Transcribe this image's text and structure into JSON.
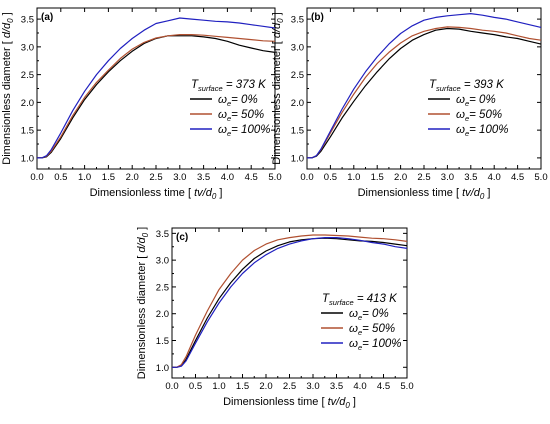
{
  "chart_data": [
    {
      "type": "line",
      "panel_label": "(a)",
      "temperature": {
        "sym": "T",
        "sub": "surface",
        "value": "= 373 K"
      },
      "xlabel": {
        "text": "Dimensionless time [",
        "var": "tv/d",
        "sub": "0",
        "close": "]"
      },
      "ylabel": {
        "text": "Dimensionless  diameter  [",
        "var": "d/d",
        "sub": "0",
        "close": "]"
      },
      "xlim": [
        0,
        5
      ],
      "ylim": [
        0.8,
        3.7
      ],
      "xticks": [
        "0.0",
        "0.5",
        "1.0",
        "1.5",
        "2.0",
        "2.5",
        "3.0",
        "3.5",
        "4.0",
        "4.5",
        "5.0"
      ],
      "yticks": [
        "1.0",
        "1.5",
        "2.0",
        "2.5",
        "3.0",
        "3.5"
      ],
      "series": [
        {
          "name": "= 0%",
          "color": "#000000",
          "x": [
            0,
            0.1,
            0.2,
            0.3,
            0.5,
            0.75,
            1,
            1.25,
            1.5,
            1.75,
            2,
            2.25,
            2.5,
            2.75,
            3,
            3.25,
            3.5,
            3.75,
            4,
            4.25,
            4.5,
            4.75,
            5
          ],
          "y": [
            1.0,
            1.0,
            1.02,
            1.1,
            1.35,
            1.72,
            2.05,
            2.32,
            2.55,
            2.75,
            2.92,
            3.06,
            3.15,
            3.2,
            3.2,
            3.2,
            3.18,
            3.15,
            3.1,
            3.03,
            2.98,
            2.93,
            2.9
          ]
        },
        {
          "name": "= 50%",
          "color": "#b05030",
          "x": [
            0,
            0.1,
            0.2,
            0.3,
            0.5,
            0.75,
            1,
            1.25,
            1.5,
            1.75,
            2,
            2.25,
            2.5,
            2.75,
            3,
            3.25,
            3.5,
            3.75,
            4,
            4.25,
            4.5,
            4.75,
            5
          ],
          "y": [
            1.0,
            1.0,
            1.03,
            1.12,
            1.38,
            1.76,
            2.09,
            2.36,
            2.58,
            2.79,
            2.96,
            3.08,
            3.16,
            3.2,
            3.22,
            3.22,
            3.21,
            3.19,
            3.17,
            3.15,
            3.13,
            3.11,
            3.1
          ]
        },
        {
          "name": "= 100%",
          "color": "#2020c0",
          "x": [
            0,
            0.1,
            0.2,
            0.3,
            0.5,
            0.75,
            1,
            1.25,
            1.5,
            1.75,
            2,
            2.25,
            2.5,
            2.75,
            3,
            3.25,
            3.5,
            3.75,
            4,
            4.25,
            4.5,
            4.75,
            5
          ],
          "y": [
            1.0,
            1.0,
            1.04,
            1.15,
            1.45,
            1.85,
            2.2,
            2.5,
            2.75,
            2.97,
            3.15,
            3.3,
            3.42,
            3.47,
            3.52,
            3.5,
            3.48,
            3.46,
            3.45,
            3.43,
            3.4,
            3.37,
            3.34
          ]
        }
      ]
    },
    {
      "type": "line",
      "panel_label": "(b)",
      "temperature": {
        "sym": "T",
        "sub": "surface",
        "value": "= 393 K"
      },
      "xlabel": {
        "text": "Dimensionless time [",
        "var": "tv/d",
        "sub": "0",
        "close": "]"
      },
      "ylabel": {
        "text": "Dimensionless  diameter  [",
        "var": "d/d",
        "sub": "0",
        "close": "]"
      },
      "xlim": [
        0,
        5
      ],
      "ylim": [
        0.8,
        3.7
      ],
      "xticks": [
        "0.0",
        "0.5",
        "1.0",
        "1.5",
        "2.0",
        "2.5",
        "3.0",
        "3.5",
        "4.0",
        "4.5",
        "5.0"
      ],
      "yticks": [
        "1.0",
        "1.5",
        "2.0",
        "2.5",
        "3.0",
        "3.5"
      ],
      "series": [
        {
          "name": "= 0%",
          "color": "#000000",
          "x": [
            0,
            0.1,
            0.2,
            0.3,
            0.5,
            0.75,
            1,
            1.25,
            1.5,
            1.75,
            2,
            2.25,
            2.5,
            2.75,
            3,
            3.25,
            3.5,
            3.75,
            4,
            4.25,
            4.5,
            4.75,
            5
          ],
          "y": [
            1.0,
            1.0,
            1.03,
            1.12,
            1.38,
            1.72,
            2.02,
            2.3,
            2.55,
            2.78,
            2.97,
            3.12,
            3.22,
            3.3,
            3.33,
            3.32,
            3.28,
            3.25,
            3.22,
            3.18,
            3.15,
            3.1,
            3.05
          ]
        },
        {
          "name": "= 50%",
          "color": "#b05030",
          "x": [
            0,
            0.1,
            0.2,
            0.3,
            0.5,
            0.75,
            1,
            1.25,
            1.5,
            1.75,
            2,
            2.25,
            2.5,
            2.75,
            3,
            3.25,
            3.5,
            3.75,
            4,
            4.25,
            4.5,
            4.75,
            5
          ],
          "y": [
            1.0,
            1.0,
            1.04,
            1.15,
            1.45,
            1.82,
            2.15,
            2.45,
            2.7,
            2.9,
            3.07,
            3.2,
            3.28,
            3.33,
            3.36,
            3.35,
            3.33,
            3.3,
            3.28,
            3.25,
            3.2,
            3.15,
            3.12
          ]
        },
        {
          "name": "= 100%",
          "color": "#2020c0",
          "x": [
            0,
            0.1,
            0.2,
            0.3,
            0.5,
            0.75,
            1,
            1.25,
            1.5,
            1.75,
            2,
            2.25,
            2.5,
            2.75,
            3,
            3.25,
            3.5,
            3.75,
            4,
            4.25,
            4.5,
            4.75,
            5
          ],
          "y": [
            1.0,
            1.0,
            1.04,
            1.16,
            1.48,
            1.88,
            2.24,
            2.55,
            2.82,
            3.05,
            3.24,
            3.38,
            3.48,
            3.53,
            3.56,
            3.58,
            3.6,
            3.57,
            3.53,
            3.5,
            3.45,
            3.4,
            3.35
          ]
        }
      ]
    },
    {
      "type": "line",
      "panel_label": "(c)",
      "temperature": {
        "sym": "T",
        "sub": "surface",
        "value": "= 413 K"
      },
      "xlabel": {
        "text": "Dimensionless time [",
        "var": "tv/d",
        "sub": "0",
        "close": "]"
      },
      "ylabel": {
        "text": "Dimensionless  diameter  [",
        "var": "d/d",
        "sub": "0",
        "close": "]"
      },
      "xlim": [
        0,
        5
      ],
      "ylim": [
        0.8,
        3.6
      ],
      "xticks": [
        "0.0",
        "0.5",
        "1.0",
        "1.5",
        "2.0",
        "2.5",
        "3.0",
        "3.5",
        "4.0",
        "4.5",
        "5.0"
      ],
      "yticks": [
        "1.0",
        "1.5",
        "2.0",
        "2.5",
        "3.0",
        "3.5"
      ],
      "series": [
        {
          "name": "= 0%",
          "color": "#000000",
          "x": [
            0,
            0.1,
            0.2,
            0.3,
            0.5,
            0.75,
            1,
            1.25,
            1.5,
            1.75,
            2,
            2.25,
            2.5,
            2.75,
            3,
            3.25,
            3.5,
            3.75,
            4,
            4.25,
            4.5,
            4.75,
            5
          ],
          "y": [
            1.0,
            1.0,
            1.03,
            1.15,
            1.5,
            1.92,
            2.28,
            2.58,
            2.83,
            3.03,
            3.17,
            3.27,
            3.34,
            3.38,
            3.4,
            3.41,
            3.4,
            3.38,
            3.36,
            3.35,
            3.33,
            3.3,
            3.27
          ]
        },
        {
          "name": "= 50%",
          "color": "#b05030",
          "x": [
            0,
            0.1,
            0.2,
            0.3,
            0.5,
            0.75,
            1,
            1.25,
            1.5,
            1.75,
            2,
            2.25,
            2.5,
            2.75,
            3,
            3.25,
            3.5,
            3.75,
            4,
            4.25,
            4.5,
            4.75,
            5
          ],
          "y": [
            1.0,
            1.0,
            1.05,
            1.2,
            1.6,
            2.05,
            2.45,
            2.75,
            3.0,
            3.18,
            3.3,
            3.38,
            3.42,
            3.45,
            3.47,
            3.47,
            3.46,
            3.45,
            3.43,
            3.41,
            3.4,
            3.38,
            3.35
          ]
        },
        {
          "name": "= 100%",
          "color": "#2020c0",
          "x": [
            0,
            0.1,
            0.2,
            0.3,
            0.5,
            0.75,
            1,
            1.25,
            1.5,
            1.75,
            2,
            2.25,
            2.5,
            2.75,
            3,
            3.25,
            3.5,
            3.75,
            4,
            4.25,
            4.5,
            4.75,
            5
          ],
          "y": [
            1.0,
            1.0,
            1.02,
            1.12,
            1.45,
            1.85,
            2.2,
            2.5,
            2.75,
            2.95,
            3.1,
            3.22,
            3.3,
            3.36,
            3.4,
            3.42,
            3.42,
            3.4,
            3.37,
            3.33,
            3.3,
            3.25,
            3.22
          ]
        }
      ]
    }
  ],
  "legend_symbol": "ω",
  "legend_symbol_sub": "e"
}
